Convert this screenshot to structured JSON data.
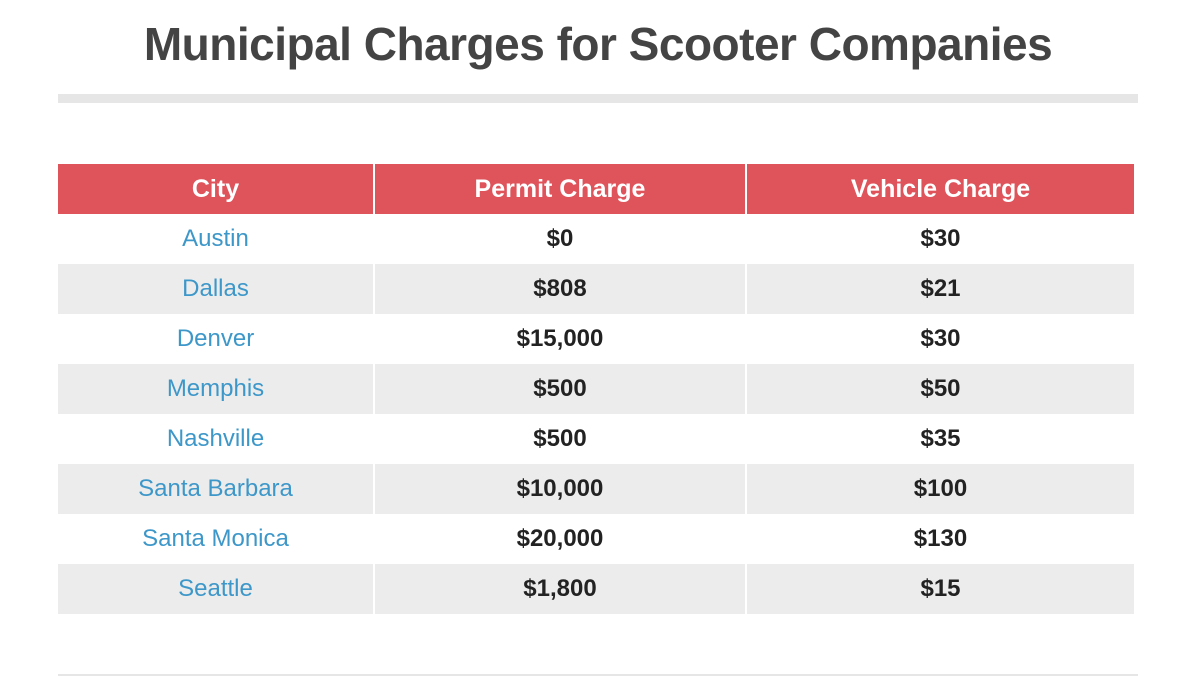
{
  "title": "Municipal Charges for Scooter Companies",
  "colors": {
    "header_bg": "#df535b",
    "city_text": "#3d97c9",
    "stripe": "#ececec"
  },
  "chart_data": {
    "type": "table",
    "title": "Municipal Charges for Scooter Companies",
    "columns": [
      "City",
      "Permit Charge",
      "Vehicle Charge"
    ],
    "rows": [
      {
        "city": "Austin",
        "permit": "$0",
        "vehicle": "$30"
      },
      {
        "city": "Dallas",
        "permit": "$808",
        "vehicle": "$21"
      },
      {
        "city": "Denver",
        "permit": "$15,000",
        "vehicle": "$30"
      },
      {
        "city": "Memphis",
        "permit": "$500",
        "vehicle": "$50"
      },
      {
        "city": "Nashville",
        "permit": "$500",
        "vehicle": "$35"
      },
      {
        "city": "Santa Barbara",
        "permit": "$10,000",
        "vehicle": "$100"
      },
      {
        "city": "Santa Monica",
        "permit": "$20,000",
        "vehicle": "$130"
      },
      {
        "city": "Seattle",
        "permit": "$1,800",
        "vehicle": "$15"
      }
    ]
  }
}
